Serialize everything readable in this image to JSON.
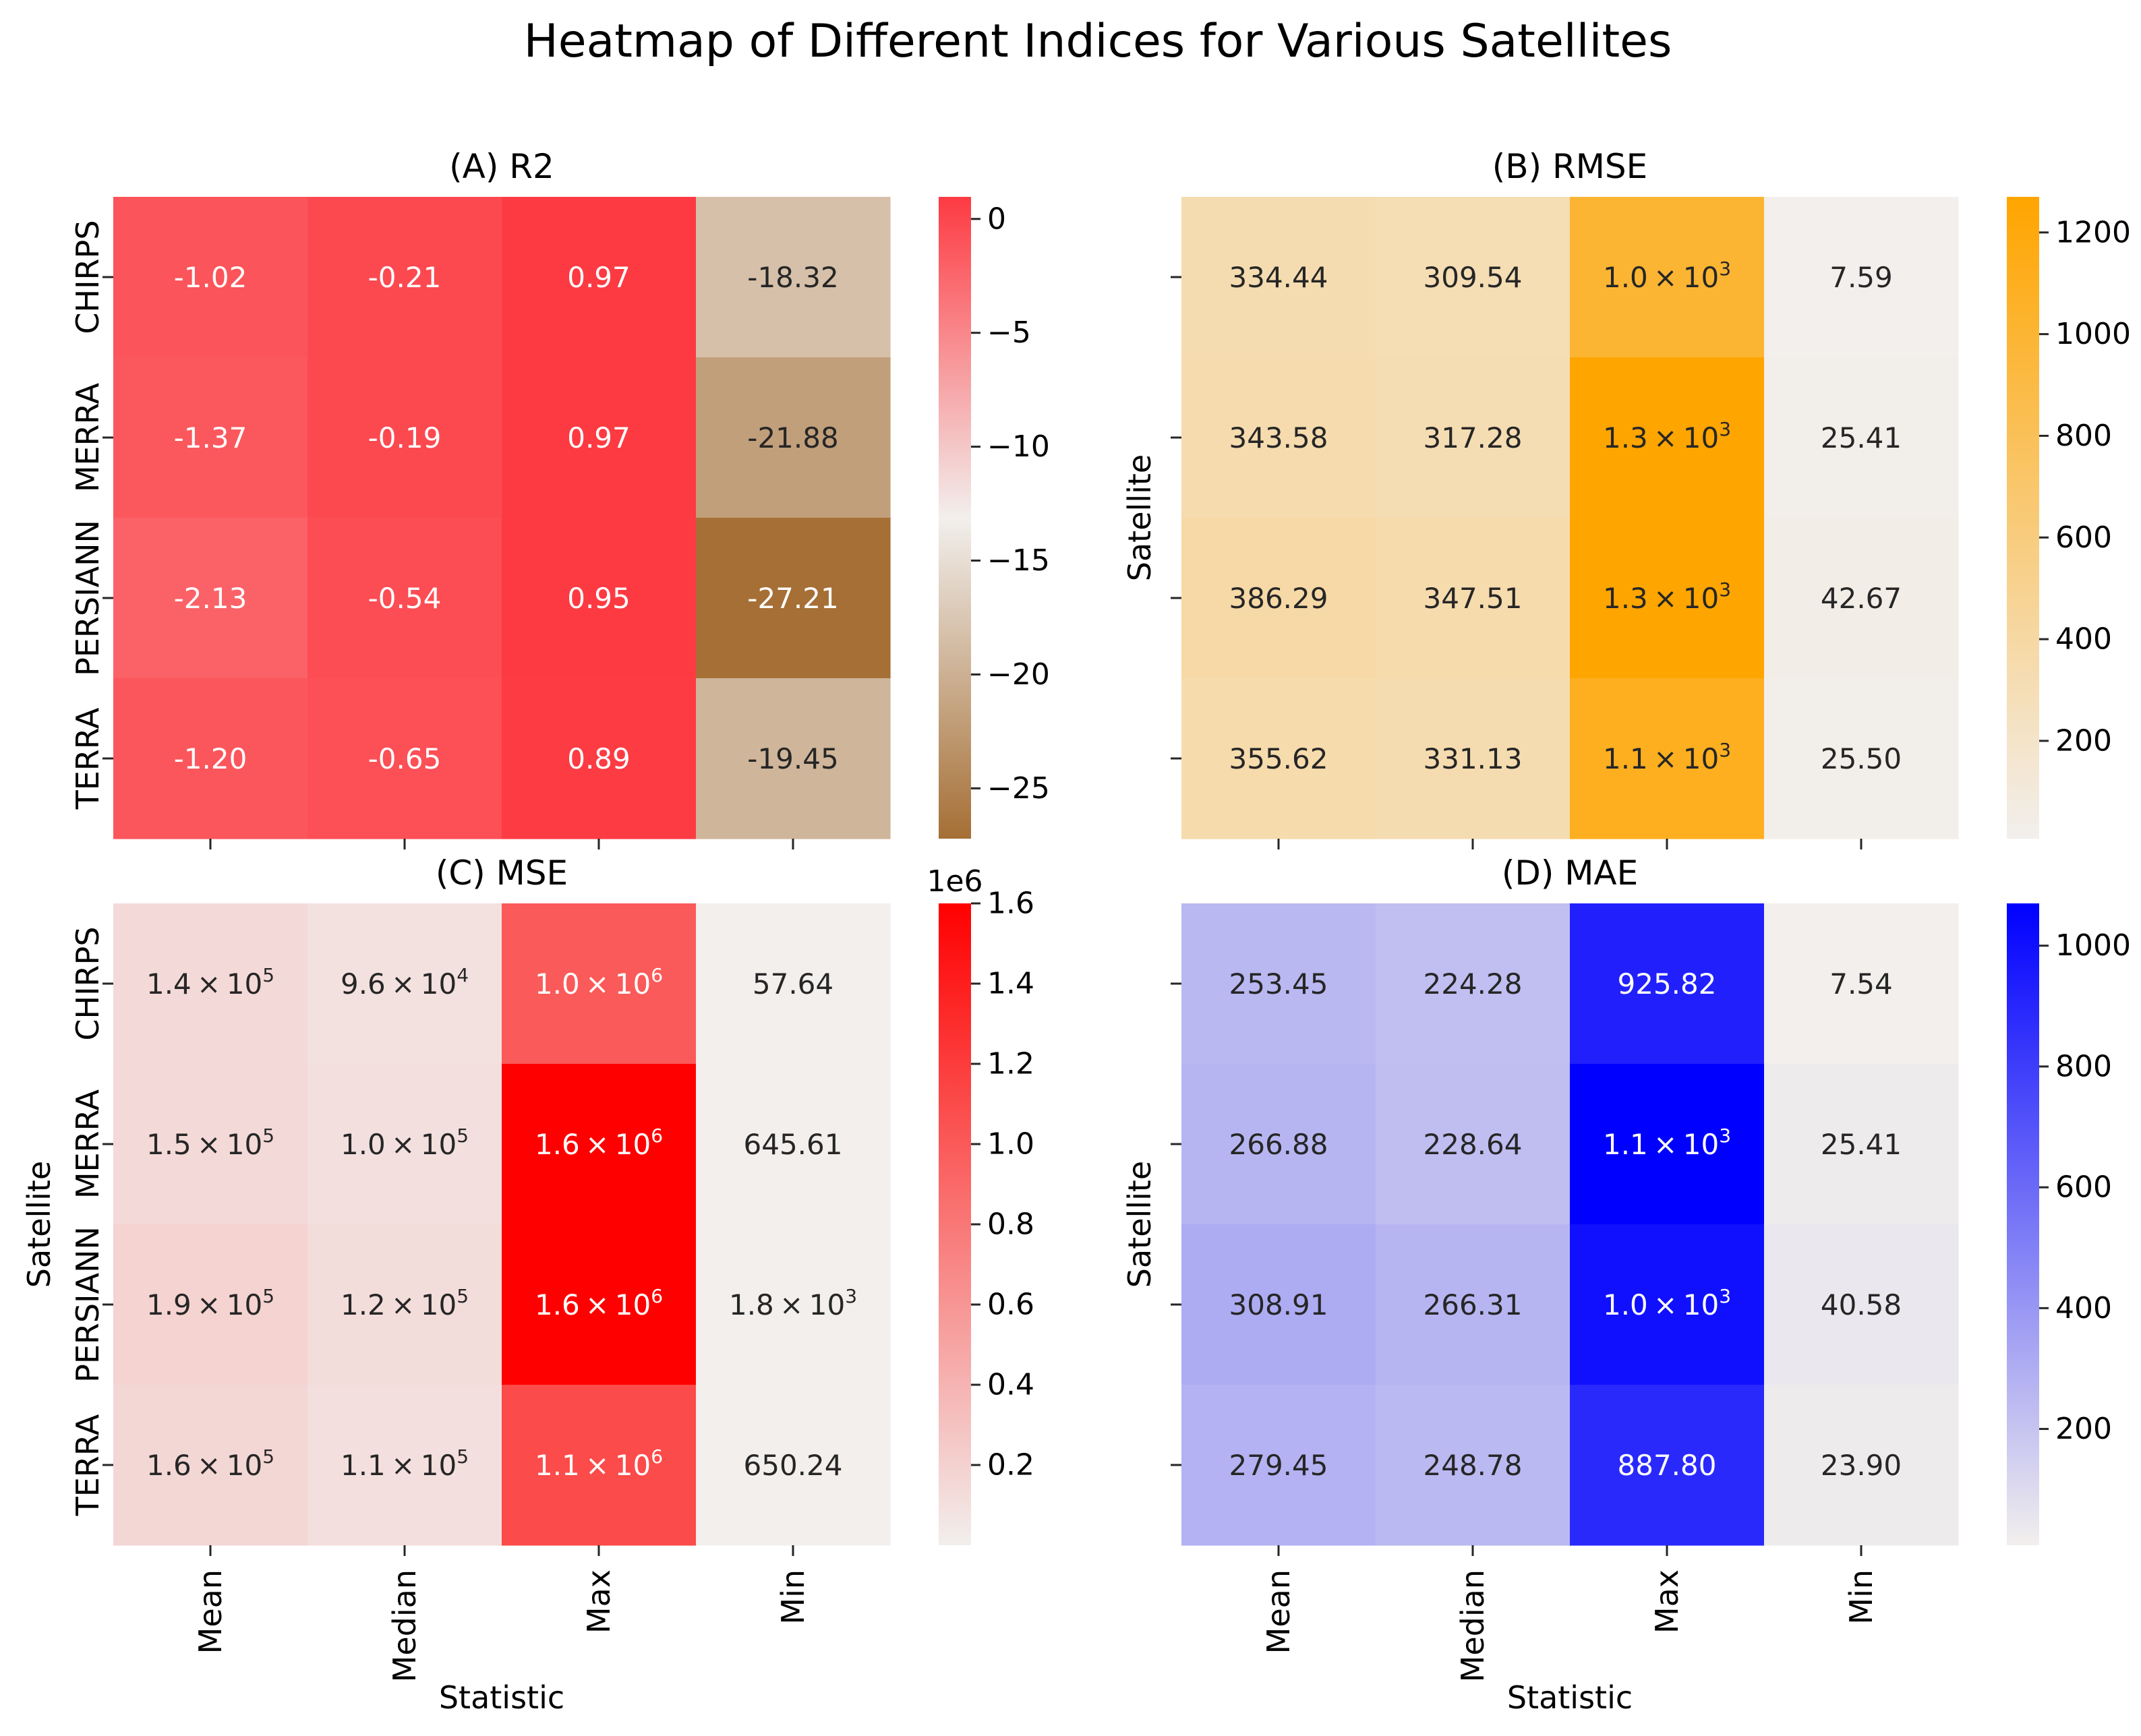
{
  "chart_data": {
    "type": "heatmap",
    "title": "Heatmap of Different Indices for Various Satellites",
    "rows": [
      "CHIRPS",
      "MERRA",
      "PERSIANN",
      "TERRA"
    ],
    "columns": [
      "Mean",
      "Median",
      "Max",
      "Min"
    ],
    "panels": [
      {
        "id": "A",
        "title": "(A) R2",
        "values": [
          [
            -1.02,
            -0.21,
            0.97,
            -18.32
          ],
          [
            -1.37,
            -0.19,
            0.97,
            -21.88
          ],
          [
            -2.13,
            -0.54,
            0.95,
            -27.21
          ],
          [
            -1.2,
            -0.65,
            0.89,
            -19.45
          ]
        ],
        "labels": [
          [
            {
              "m": "-1.02"
            },
            {
              "m": "-0.21"
            },
            {
              "m": "0.97"
            },
            {
              "m": "-18.32"
            }
          ],
          [
            {
              "m": "-1.37"
            },
            {
              "m": "-0.19"
            },
            {
              "m": "0.97"
            },
            {
              "m": "-21.88"
            }
          ],
          [
            {
              "m": "-2.13"
            },
            {
              "m": "-0.54"
            },
            {
              "m": "0.95"
            },
            {
              "m": "-27.21"
            }
          ],
          [
            {
              "m": "-1.20"
            },
            {
              "m": "-0.65"
            },
            {
              "m": "0.89"
            },
            {
              "m": "-19.45"
            }
          ]
        ],
        "colormap": [
          "#a56f35",
          "#f2efed",
          "#fd3a42"
        ],
        "vmin": -27.21,
        "vmax": 0.97,
        "colorbar_ticks": [
          0,
          -5,
          -10,
          -15,
          -20,
          -25
        ],
        "colorbar_tick_labels": [
          "0",
          "−5",
          "−10",
          "−15",
          "−20",
          "−25"
        ],
        "colorbar_offset": "",
        "show_xtick_labels": false,
        "show_ytick_labels": true,
        "xlabel": "",
        "ylabel": ""
      },
      {
        "id": "B",
        "title": "(B) RMSE",
        "values": [
          [
            334.44,
            309.54,
            1000,
            7.59
          ],
          [
            343.58,
            317.28,
            1270,
            25.41
          ],
          [
            386.29,
            347.51,
            1270,
            42.67
          ],
          [
            355.62,
            331.13,
            1100,
            25.5
          ]
        ],
        "labels": [
          [
            {
              "m": "334.44"
            },
            {
              "m": "309.54"
            },
            {
              "m": "1.0 × 10",
              "e": "3"
            },
            {
              "m": "7.59"
            }
          ],
          [
            {
              "m": "343.58"
            },
            {
              "m": "317.28"
            },
            {
              "m": "1.3 × 10",
              "e": "3"
            },
            {
              "m": "25.41"
            }
          ],
          [
            {
              "m": "386.29"
            },
            {
              "m": "347.51"
            },
            {
              "m": "1.3 × 10",
              "e": "3"
            },
            {
              "m": "42.67"
            }
          ],
          [
            {
              "m": "355.62"
            },
            {
              "m": "331.13"
            },
            {
              "m": "1.1 × 10",
              "e": "3"
            },
            {
              "m": "25.50"
            }
          ]
        ],
        "colormap": [
          "#f2efed",
          "#ffa500"
        ],
        "vmin": 7.59,
        "vmax": 1270,
        "colorbar_ticks": [
          200,
          400,
          600,
          800,
          1000,
          1200
        ],
        "colorbar_tick_labels": [
          "200",
          "400",
          "600",
          "800",
          "1000",
          "1200"
        ],
        "colorbar_offset": "",
        "show_xtick_labels": false,
        "show_ytick_labels": false,
        "xlabel": "",
        "ylabel": "Satellite"
      },
      {
        "id": "C",
        "title": "(C) MSE",
        "values": [
          [
            140000,
            96000,
            1000000,
            57.64
          ],
          [
            150000,
            100000,
            1600000,
            645.61
          ],
          [
            190000,
            120000,
            1600000,
            1800
          ],
          [
            160000,
            110000,
            1100000,
            650.24
          ]
        ],
        "labels": [
          [
            {
              "m": "1.4 × 10",
              "e": "5"
            },
            {
              "m": "9.6 × 10",
              "e": "4"
            },
            {
              "m": "1.0 × 10",
              "e": "6"
            },
            {
              "m": "57.64"
            }
          ],
          [
            {
              "m": "1.5 × 10",
              "e": "5"
            },
            {
              "m": "1.0 × 10",
              "e": "5"
            },
            {
              "m": "1.6 × 10",
              "e": "6"
            },
            {
              "m": "645.61"
            }
          ],
          [
            {
              "m": "1.9 × 10",
              "e": "5"
            },
            {
              "m": "1.2 × 10",
              "e": "5"
            },
            {
              "m": "1.6 × 10",
              "e": "6"
            },
            {
              "m": "1.8 × 10",
              "e": "3"
            }
          ],
          [
            {
              "m": "1.6 × 10",
              "e": "5"
            },
            {
              "m": "1.1 × 10",
              "e": "5"
            },
            {
              "m": "1.1 × 10",
              "e": "6"
            },
            {
              "m": "650.24"
            }
          ]
        ],
        "colormap": [
          "#f2efed",
          "#ff0000"
        ],
        "vmin": 57.64,
        "vmax": 1600000,
        "colorbar_ticks": [
          200000,
          400000,
          600000,
          800000,
          1000000,
          1200000,
          1400000,
          1600000
        ],
        "colorbar_tick_labels": [
          "0.2",
          "0.4",
          "0.6",
          "0.8",
          "1.0",
          "1.2",
          "1.4",
          "1.6"
        ],
        "colorbar_offset": "1e6",
        "show_xtick_labels": true,
        "show_ytick_labels": true,
        "xlabel": "Statistic",
        "ylabel": "Satellite"
      },
      {
        "id": "D",
        "title": "(D) MAE",
        "values": [
          [
            253.45,
            224.28,
            925.82,
            7.54
          ],
          [
            266.88,
            228.64,
            1070,
            25.41
          ],
          [
            308.91,
            266.31,
            1000,
            40.58
          ],
          [
            279.45,
            248.78,
            887.8,
            23.9
          ]
        ],
        "labels": [
          [
            {
              "m": "253.45"
            },
            {
              "m": "224.28"
            },
            {
              "m": "925.82"
            },
            {
              "m": "7.54"
            }
          ],
          [
            {
              "m": "266.88"
            },
            {
              "m": "228.64"
            },
            {
              "m": "1.1 × 10",
              "e": "3"
            },
            {
              "m": "25.41"
            }
          ],
          [
            {
              "m": "308.91"
            },
            {
              "m": "266.31"
            },
            {
              "m": "1.0 × 10",
              "e": "3"
            },
            {
              "m": "40.58"
            }
          ],
          [
            {
              "m": "279.45"
            },
            {
              "m": "248.78"
            },
            {
              "m": "887.80"
            },
            {
              "m": "23.90"
            }
          ]
        ],
        "colormap": [
          "#f2efed",
          "#0000ff"
        ],
        "vmin": 7.54,
        "vmax": 1070,
        "colorbar_ticks": [
          200,
          400,
          600,
          800,
          1000
        ],
        "colorbar_tick_labels": [
          "200",
          "400",
          "600",
          "800",
          "1000"
        ],
        "colorbar_offset": "",
        "show_xtick_labels": true,
        "show_ytick_labels": false,
        "xlabel": "Statistic",
        "ylabel": "Satellite"
      }
    ]
  }
}
